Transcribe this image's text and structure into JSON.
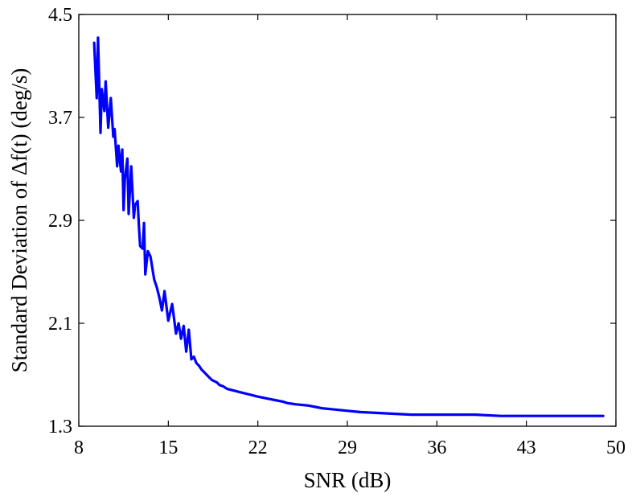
{
  "chart_data": {
    "type": "line",
    "xlabel": "SNR (dB)",
    "ylabel": "Standard Deviation of Δf(t) (deg/s)",
    "xlim": [
      8,
      50
    ],
    "ylim": [
      1.3,
      4.5
    ],
    "xticks": [
      8,
      15,
      22,
      29,
      36,
      43,
      50
    ],
    "yticks": [
      1.3,
      2.1,
      2.9,
      3.7,
      4.5
    ],
    "xtick_labels": [
      "8",
      "15",
      "22",
      "29",
      "36",
      "43",
      "50"
    ],
    "ytick_labels": [
      "1.3",
      "2.1",
      "2.9",
      "3.7",
      "4.5"
    ],
    "grid": false,
    "line_color": "#0000ff",
    "series": [
      {
        "x": [
          9.2,
          9.4,
          9.5,
          9.7,
          9.8,
          10.0,
          10.1,
          10.3,
          10.5,
          10.7,
          10.8,
          11.0,
          11.1,
          11.3,
          11.4,
          11.5,
          11.6,
          11.8,
          11.9,
          12.1,
          12.3,
          12.4,
          12.6,
          12.7,
          12.8,
          13.0,
          13.1,
          13.2,
          13.4,
          13.6,
          13.8,
          13.9,
          14.1,
          14.3,
          14.5,
          14.7,
          15.0,
          15.3,
          15.6,
          15.8,
          16.0,
          16.2,
          16.4,
          16.6,
          16.8,
          17.0,
          17.2,
          17.4,
          17.6,
          17.8,
          18.0,
          18.2,
          18.4,
          18.6,
          18.8,
          19.0,
          19.3,
          19.6,
          20.0,
          20.4,
          20.8,
          21.2,
          21.6,
          22.0,
          22.5,
          23.0,
          23.5,
          24.0,
          24.3,
          25.0,
          26.0,
          26.5,
          27.0,
          28.0,
          29.0,
          30.0,
          32.0,
          34.0,
          35.0,
          37.0,
          39.0,
          41.0,
          43.0,
          45.0,
          47.0,
          49.0
        ],
        "y": [
          4.28,
          3.85,
          4.32,
          3.58,
          3.92,
          3.75,
          3.98,
          3.62,
          3.85,
          3.55,
          3.61,
          3.32,
          3.48,
          3.28,
          3.45,
          2.98,
          3.22,
          3.38,
          2.95,
          3.32,
          2.92,
          3.02,
          3.05,
          2.85,
          2.7,
          2.68,
          2.88,
          2.48,
          2.66,
          2.62,
          2.5,
          2.44,
          2.38,
          2.3,
          2.2,
          2.35,
          2.12,
          2.25,
          2.02,
          2.1,
          1.98,
          2.08,
          1.88,
          2.05,
          1.82,
          1.84,
          1.79,
          1.77,
          1.74,
          1.72,
          1.7,
          1.68,
          1.66,
          1.65,
          1.64,
          1.62,
          1.61,
          1.59,
          1.58,
          1.57,
          1.56,
          1.55,
          1.54,
          1.53,
          1.52,
          1.51,
          1.5,
          1.49,
          1.48,
          1.47,
          1.46,
          1.45,
          1.44,
          1.43,
          1.42,
          1.41,
          1.4,
          1.39,
          1.39,
          1.39,
          1.39,
          1.38,
          1.38,
          1.38,
          1.38,
          1.38
        ]
      }
    ]
  }
}
